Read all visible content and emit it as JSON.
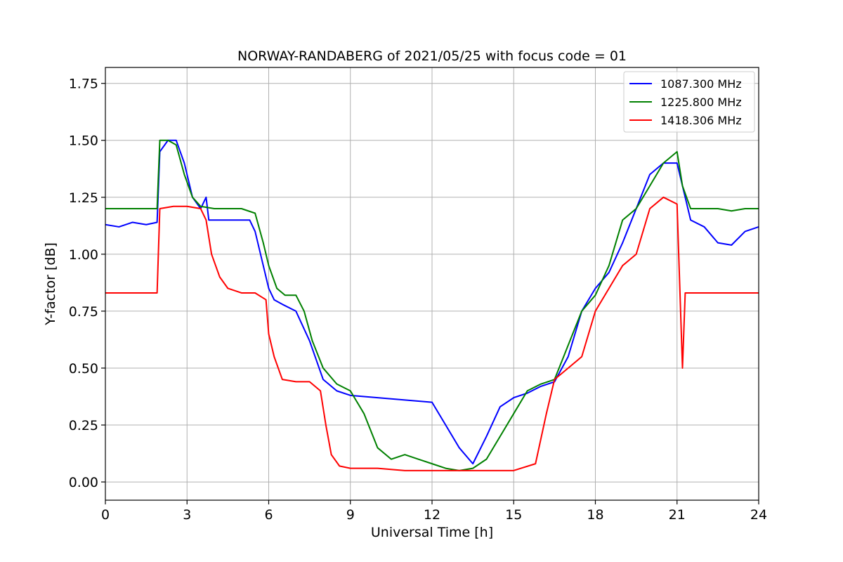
{
  "chart_data": {
    "type": "line",
    "title": "NORWAY-RANDABERG of 2021/05/25 with focus code = 01",
    "xlabel": "Universal Time [h]",
    "ylabel": "Y-factor [dB]",
    "xlim": [
      0,
      24
    ],
    "ylim": [
      -0.08,
      1.82
    ],
    "xticks": [
      0,
      3,
      6,
      9,
      12,
      15,
      18,
      21,
      24
    ],
    "xtick_labels": [
      "0",
      "3",
      "6",
      "9",
      "12",
      "15",
      "18",
      "21",
      "24"
    ],
    "yticks": [
      0.0,
      0.25,
      0.5,
      0.75,
      1.0,
      1.25,
      1.5,
      1.75
    ],
    "ytick_labels": [
      "0.00",
      "0.25",
      "0.50",
      "0.75",
      "1.00",
      "1.25",
      "1.50",
      "1.75"
    ],
    "grid": true,
    "legend_position": "top-right",
    "series": [
      {
        "name": "1087.300 MHz",
        "color": "#0000ff",
        "x": [
          0,
          0.5,
          1,
          1.5,
          1.9,
          2.0,
          2.3,
          2.6,
          2.9,
          3.2,
          3.5,
          3.7,
          3.8,
          4.5,
          5.0,
          5.3,
          5.5,
          5.8,
          6.0,
          6.2,
          6.5,
          7.0,
          7.5,
          8.0,
          8.5,
          9.0,
          10.0,
          11.0,
          12.0,
          12.5,
          13.0,
          13.5,
          14.0,
          14.5,
          15.0,
          15.5,
          16.0,
          16.5,
          17.0,
          17.5,
          18.0,
          18.5,
          19.0,
          19.5,
          20.0,
          20.5,
          21.0,
          21.2,
          21.5,
          22.0,
          22.5,
          23.0,
          23.5,
          24.0
        ],
        "y": [
          1.13,
          1.12,
          1.14,
          1.13,
          1.14,
          1.45,
          1.5,
          1.5,
          1.4,
          1.25,
          1.2,
          1.25,
          1.15,
          1.15,
          1.15,
          1.15,
          1.1,
          0.95,
          0.85,
          0.8,
          0.78,
          0.75,
          0.62,
          0.45,
          0.4,
          0.38,
          0.37,
          0.36,
          0.35,
          0.25,
          0.15,
          0.08,
          0.2,
          0.33,
          0.37,
          0.39,
          0.42,
          0.44,
          0.55,
          0.75,
          0.85,
          0.92,
          1.05,
          1.2,
          1.35,
          1.4,
          1.4,
          1.3,
          1.15,
          1.12,
          1.05,
          1.04,
          1.1,
          1.12
        ]
      },
      {
        "name": "1225.800 MHz",
        "color": "#008000",
        "x": [
          0,
          0.5,
          1,
          1.5,
          1.9,
          2.0,
          2.3,
          2.6,
          2.9,
          3.2,
          3.5,
          4.0,
          4.5,
          5.0,
          5.5,
          5.8,
          6.0,
          6.3,
          6.6,
          7.0,
          7.3,
          7.6,
          8.0,
          8.5,
          9.0,
          9.5,
          10.0,
          10.5,
          11.0,
          11.5,
          12.0,
          12.5,
          13.0,
          13.5,
          14.0,
          14.5,
          15.0,
          15.5,
          16.0,
          16.5,
          17.0,
          17.5,
          18.0,
          18.5,
          19.0,
          19.5,
          20.0,
          20.5,
          21.0,
          21.2,
          21.5,
          22.0,
          22.5,
          23.0,
          23.5,
          24.0
        ],
        "y": [
          1.2,
          1.2,
          1.2,
          1.2,
          1.2,
          1.5,
          1.5,
          1.48,
          1.35,
          1.25,
          1.21,
          1.2,
          1.2,
          1.2,
          1.18,
          1.05,
          0.95,
          0.85,
          0.82,
          0.82,
          0.75,
          0.62,
          0.5,
          0.43,
          0.4,
          0.3,
          0.15,
          0.1,
          0.12,
          0.1,
          0.08,
          0.06,
          0.05,
          0.06,
          0.1,
          0.2,
          0.3,
          0.4,
          0.43,
          0.45,
          0.6,
          0.75,
          0.82,
          0.95,
          1.15,
          1.2,
          1.3,
          1.4,
          1.45,
          1.3,
          1.2,
          1.2,
          1.2,
          1.19,
          1.2,
          1.2
        ]
      },
      {
        "name": "1418.306 MHz",
        "color": "#ff0000",
        "x": [
          0,
          0.5,
          1,
          1.5,
          1.9,
          2.0,
          2.5,
          3.0,
          3.5,
          3.7,
          3.9,
          4.2,
          4.5,
          5.0,
          5.5,
          5.9,
          6.0,
          6.2,
          6.5,
          7.0,
          7.5,
          7.9,
          8.1,
          8.3,
          8.6,
          9.0,
          10.0,
          11.0,
          12.0,
          13.0,
          14.0,
          15.0,
          15.8,
          16.2,
          16.5,
          17.0,
          17.5,
          18.0,
          18.5,
          19.0,
          19.5,
          20.0,
          20.5,
          21.0,
          21.2,
          21.3,
          21.5,
          22.0,
          22.5,
          23.0,
          23.5,
          24.0
        ],
        "y": [
          0.83,
          0.83,
          0.83,
          0.83,
          0.83,
          1.2,
          1.21,
          1.21,
          1.2,
          1.15,
          1.0,
          0.9,
          0.85,
          0.83,
          0.83,
          0.8,
          0.65,
          0.55,
          0.45,
          0.44,
          0.44,
          0.4,
          0.25,
          0.12,
          0.07,
          0.06,
          0.06,
          0.05,
          0.05,
          0.05,
          0.05,
          0.05,
          0.08,
          0.3,
          0.45,
          0.5,
          0.55,
          0.75,
          0.85,
          0.95,
          1.0,
          1.2,
          1.25,
          1.22,
          0.5,
          0.83,
          0.83,
          0.83,
          0.83,
          0.83,
          0.83,
          0.83
        ]
      }
    ]
  }
}
